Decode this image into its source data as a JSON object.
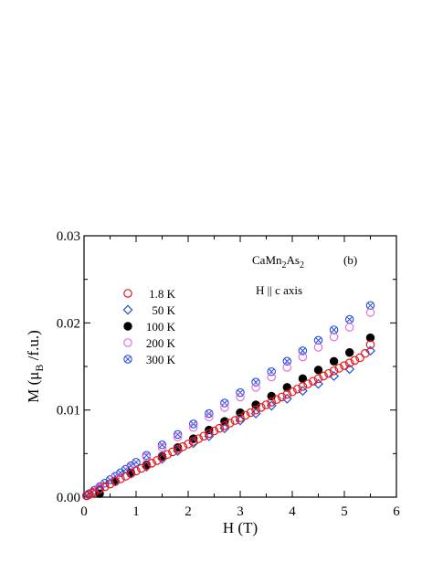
{
  "chart_data": {
    "type": "scatter",
    "title": "",
    "xlabel": "H (T)",
    "ylabel_main": "M (μ",
    "ylabel_sub": "B",
    "ylabel_tail": " /f.u.)",
    "xlim": [
      0,
      6
    ],
    "ylim": [
      0,
      0.03
    ],
    "x_ticks": [
      0,
      1,
      2,
      3,
      4,
      5,
      6
    ],
    "x_tick_labels": [
      "0",
      "1",
      "2",
      "3",
      "4",
      "5",
      "6"
    ],
    "y_ticks": [
      0,
      0.01,
      0.02,
      0.03
    ],
    "y_tick_labels": [
      "0.00",
      "0.01",
      "0.02",
      "0.03"
    ],
    "grid": false,
    "legend_position": "upper-left",
    "annotations": {
      "compound_main": "CaMn",
      "compound_sub1": "2",
      "compound_mid": "As",
      "compound_sub2": "2",
      "panel": "(b)",
      "field_direction": "H || c axis"
    },
    "series": [
      {
        "name": "1.8 K",
        "marker": "open-circle",
        "color": "#e8191c",
        "x": [
          0.05,
          0.1,
          0.15,
          0.2,
          0.3,
          0.4,
          0.5,
          0.6,
          0.7,
          0.8,
          0.9,
          1.0,
          1.1,
          1.2,
          1.3,
          1.4,
          1.5,
          1.6,
          1.7,
          1.8,
          1.9,
          2.0,
          2.1,
          2.2,
          2.3,
          2.4,
          2.5,
          2.6,
          2.7,
          2.8,
          2.9,
          3.0,
          3.1,
          3.2,
          3.3,
          3.4,
          3.5,
          3.6,
          3.7,
          3.8,
          3.9,
          4.0,
          4.1,
          4.2,
          4.3,
          4.4,
          4.5,
          4.6,
          4.7,
          4.8,
          4.9,
          5.0,
          5.1,
          5.2,
          5.3,
          5.4,
          5.5
        ],
        "y": [
          0.00015,
          0.0003,
          0.00045,
          0.0006,
          0.0009,
          0.0012,
          0.0015,
          0.0018,
          0.0021,
          0.0024,
          0.0027,
          0.003,
          0.0033,
          0.0036,
          0.0039,
          0.0042,
          0.0046,
          0.0049,
          0.0052,
          0.0055,
          0.0058,
          0.0061,
          0.0064,
          0.0067,
          0.007,
          0.0073,
          0.0076,
          0.0079,
          0.0082,
          0.0085,
          0.0088,
          0.0091,
          0.0094,
          0.0097,
          0.01,
          0.0103,
          0.0106,
          0.0109,
          0.0112,
          0.0115,
          0.0118,
          0.0121,
          0.0124,
          0.0127,
          0.013,
          0.0133,
          0.0136,
          0.0139,
          0.0142,
          0.0145,
          0.0148,
          0.0151,
          0.0154,
          0.0157,
          0.016,
          0.0165,
          0.0175
        ]
      },
      {
        "name": "50 K",
        "marker": "open-diamond",
        "color": "#1f4fe0",
        "x": [
          0.3,
          0.6,
          0.9,
          1.2,
          1.5,
          1.8,
          2.1,
          2.4,
          2.7,
          3.0,
          3.3,
          3.6,
          3.9,
          4.2,
          4.5,
          4.8,
          5.1,
          5.5
        ],
        "y": [
          0.0009,
          0.0018,
          0.0027,
          0.0035,
          0.0044,
          0.0053,
          0.0062,
          0.007,
          0.0079,
          0.0088,
          0.0096,
          0.0105,
          0.0113,
          0.0122,
          0.013,
          0.0139,
          0.0147,
          0.0168
        ]
      },
      {
        "name": "100 K",
        "marker": "filled-circle",
        "color": "#000000",
        "x": [
          0.3,
          0.6,
          0.9,
          1.2,
          1.5,
          1.8,
          2.1,
          2.4,
          2.7,
          3.0,
          3.3,
          3.6,
          3.9,
          4.2,
          4.5,
          4.8,
          5.1,
          5.5
        ],
        "y": [
          0.0004,
          0.0018,
          0.0028,
          0.0037,
          0.0047,
          0.0057,
          0.0067,
          0.0077,
          0.0087,
          0.0097,
          0.0106,
          0.0116,
          0.0126,
          0.0136,
          0.0146,
          0.0156,
          0.0166,
          0.0183
        ]
      },
      {
        "name": "200 K",
        "marker": "open-circle",
        "color": "#e76de8",
        "x": [
          0.3,
          0.6,
          0.9,
          1.2,
          1.5,
          1.8,
          2.1,
          2.4,
          2.7,
          3.0,
          3.3,
          3.6,
          3.9,
          4.2,
          4.5,
          4.8,
          5.1,
          5.5
        ],
        "y": [
          0.0011,
          0.0023,
          0.0034,
          0.0046,
          0.0057,
          0.0069,
          0.008,
          0.0092,
          0.0103,
          0.0115,
          0.0126,
          0.0138,
          0.0149,
          0.0161,
          0.0172,
          0.0184,
          0.0195,
          0.0212
        ]
      },
      {
        "name": "300 K",
        "marker": "crossed-circle",
        "color": "#1f4fe0",
        "x": [
          0.05,
          0.1,
          0.2,
          0.3,
          0.4,
          0.5,
          0.6,
          0.7,
          0.8,
          0.9,
          1.0,
          1.2,
          1.5,
          1.8,
          2.1,
          2.4,
          2.7,
          3.0,
          3.3,
          3.6,
          3.9,
          4.2,
          4.5,
          4.8,
          5.1,
          5.5
        ],
        "y": [
          0.0002,
          0.0004,
          0.0008,
          0.0012,
          0.0016,
          0.002,
          0.0024,
          0.0028,
          0.0032,
          0.0036,
          0.004,
          0.0048,
          0.006,
          0.0072,
          0.0084,
          0.0096,
          0.0108,
          0.012,
          0.0132,
          0.0144,
          0.0156,
          0.0168,
          0.018,
          0.0192,
          0.0204,
          0.022
        ]
      }
    ]
  }
}
